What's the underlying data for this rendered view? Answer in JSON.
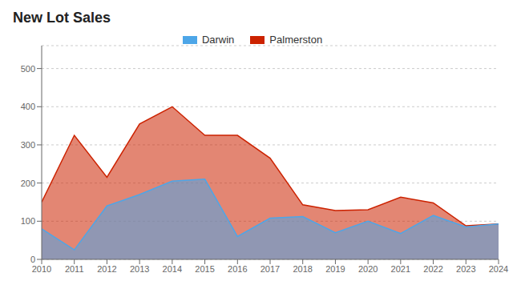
{
  "chart_data": {
    "type": "area",
    "title": "New Lot Sales",
    "x": [
      2010,
      2011,
      2012,
      2013,
      2014,
      2015,
      2016,
      2017,
      2018,
      2019,
      2020,
      2021,
      2022,
      2023,
      2024
    ],
    "series": [
      {
        "name": "Darwin",
        "color": "#4da6e8",
        "values": [
          80,
          25,
          140,
          170,
          205,
          210,
          60,
          108,
          112,
          70,
          100,
          68,
          115,
          85,
          93
        ]
      },
      {
        "name": "Palmerston",
        "color": "#cc2200",
        "values": [
          150,
          325,
          215,
          355,
          400,
          325,
          325,
          265,
          143,
          128,
          130,
          163,
          148,
          88,
          93
        ]
      }
    ],
    "xlim": [
      2010,
      2024
    ],
    "xticks": [
      2010,
      2011,
      2012,
      2013,
      2014,
      2015,
      2016,
      2017,
      2018,
      2019,
      2020,
      2021,
      2022,
      2023,
      2024
    ],
    "ylim": [
      0,
      560
    ],
    "yticks": [
      0,
      100,
      200,
      300,
      400,
      500
    ],
    "grid": true,
    "legend": "top"
  }
}
